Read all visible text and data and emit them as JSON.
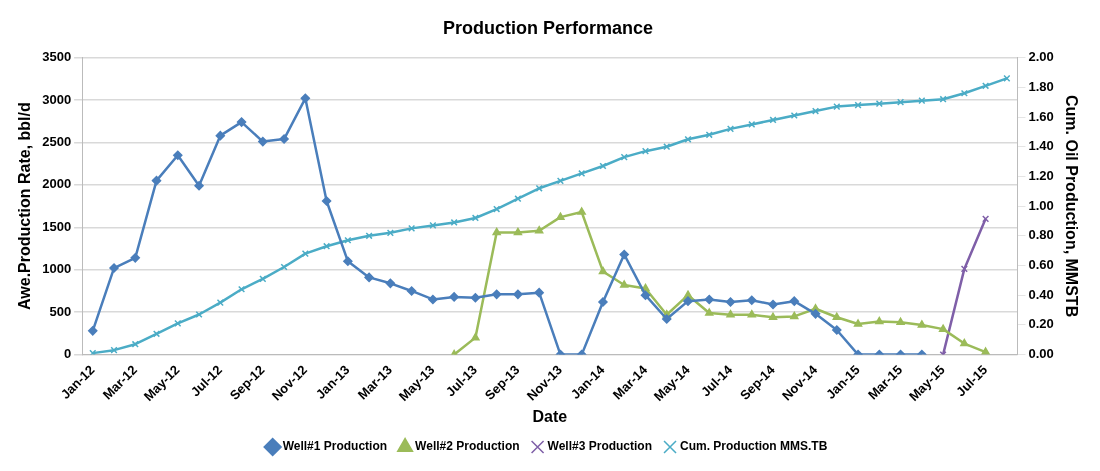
{
  "chart_data": {
    "type": "line",
    "title": "Production Performance",
    "xlabel": "Date",
    "ylabel": "Awe.Production Rate, bbl/d",
    "y2label": "Cum. Oil Production, MMSTB",
    "categories": [
      "Jan-12",
      null,
      "Mar-12",
      null,
      "May-12",
      null,
      "Jul-12",
      null,
      "Sep-12",
      null,
      "Nov-12",
      null,
      "Jan-13",
      null,
      "Mar-13",
      null,
      "May-13",
      null,
      "Jul-13",
      null,
      "Sep-13",
      null,
      "Nov-13",
      null,
      "Jan-14",
      null,
      "Mar-14",
      null,
      "May-14",
      null,
      "Jul-14",
      null,
      "Sep-14",
      null,
      "Nov-14",
      null,
      "Jan-15",
      null,
      "Mar-15",
      null,
      "May-15",
      null,
      "Jul-15",
      null
    ],
    "series": [
      {
        "name": "Well#1 Production",
        "color": "#4a7ebb",
        "marker": "diamond",
        "values": [
          280,
          1020,
          1140,
          2050,
          2350,
          1990,
          2580,
          2740,
          2510,
          2540,
          3020,
          1810,
          1100,
          910,
          840,
          750,
          650,
          680,
          670,
          710,
          710,
          730,
          0,
          0,
          620,
          1180,
          700,
          420,
          630,
          650,
          620,
          640,
          590,
          630,
          480,
          290,
          0,
          0,
          0,
          0,
          null,
          null,
          null,
          null
        ]
      },
      {
        "name": "Well#2 Production",
        "color": "#9bbb59",
        "marker": "triangle",
        "values": [
          null,
          null,
          null,
          null,
          null,
          null,
          null,
          null,
          null,
          null,
          null,
          null,
          null,
          null,
          null,
          null,
          null,
          0,
          200,
          1440,
          1440,
          1460,
          1620,
          1680,
          980,
          820,
          780,
          470,
          700,
          490,
          470,
          470,
          440,
          450,
          540,
          440,
          360,
          390,
          380,
          350,
          300,
          130,
          30,
          null
        ]
      },
      {
        "name": "Well#3 Production",
        "color": "#7f5fa8",
        "marker": "cross",
        "values": [
          null,
          null,
          null,
          null,
          null,
          null,
          null,
          null,
          null,
          null,
          null,
          null,
          null,
          null,
          null,
          null,
          null,
          null,
          null,
          null,
          null,
          null,
          null,
          null,
          null,
          null,
          null,
          null,
          null,
          null,
          null,
          null,
          null,
          null,
          null,
          null,
          null,
          null,
          null,
          null,
          0,
          1010,
          1600,
          null
        ]
      },
      {
        "name": "Cum. Production MMS.TB",
        "color": "#4bacc6",
        "marker": "cross",
        "axis": "y2",
        "values": [
          0.01,
          0.03,
          0.07,
          0.14,
          0.21,
          0.27,
          0.35,
          0.44,
          0.51,
          0.59,
          0.68,
          0.73,
          0.77,
          0.8,
          0.82,
          0.85,
          0.87,
          0.89,
          0.92,
          0.98,
          1.05,
          1.12,
          1.17,
          1.22,
          1.27,
          1.33,
          1.37,
          1.4,
          1.45,
          1.48,
          1.52,
          1.55,
          1.58,
          1.61,
          1.64,
          1.67,
          1.68,
          1.69,
          1.7,
          1.71,
          1.72,
          1.76,
          1.81,
          1.86
        ]
      }
    ],
    "ylim": [
      0,
      3500
    ],
    "yticks": [
      0,
      500,
      1000,
      1500,
      2000,
      2500,
      3000,
      3500
    ],
    "y2lim": [
      0,
      2
    ],
    "y2ticks": [
      {
        "value": 0,
        "label": "0.00"
      },
      {
        "value": 0.2,
        "label": "0.20"
      },
      {
        "value": 0.4,
        "label": "0.40"
      },
      {
        "value": 0.6,
        "label": "0.60"
      },
      {
        "value": 0.8,
        "label": "0.80"
      },
      {
        "value": 1,
        "label": "1.00"
      },
      {
        "value": 1.2,
        "label": "1.20"
      },
      {
        "value": 1.4,
        "label": "1.40"
      },
      {
        "value": 1.6,
        "label": "1.60"
      },
      {
        "value": 1.8,
        "label": "1.80"
      },
      {
        "value": 2,
        "label": "2.00"
      }
    ],
    "grid": "y",
    "legend": "bottom",
    "line_style": "solid"
  }
}
